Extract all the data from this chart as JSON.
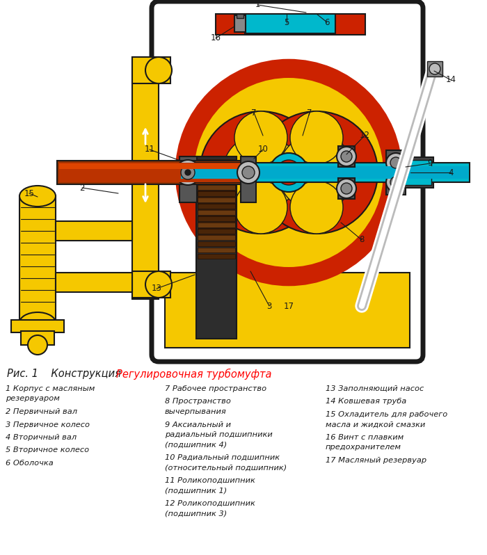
{
  "title_black": "Рис. 1    Конструкция ",
  "title_red": "Регулировочная турбомуфта",
  "title_fontsize": 10.5,
  "col1_labels": [
    "1 Корпус с масляным\nрезервуаром",
    "2 Первичный вал",
    "3 Первичное колесо",
    "4 Вторичный вал",
    "5 Вторичное колесо",
    "6 Оболочка"
  ],
  "col2_labels": [
    "7 Рабочее пространство",
    "8 Пространство\nвычерпывания",
    "9 Аксиальный и\nрадиальный подшипники\n(подшипник 4)",
    "10 Радиальный подшипник\n(относительный подшипник)",
    "11 Роликоподшипник\n(подшипник 1)",
    "12 Роликоподшипник\n(подшипник 3)"
  ],
  "col3_labels": [
    "13 Заполняющий насос",
    "14 Ковшевая труба",
    "15 Охладитель для рабочего\nмасла и жидкой смазки",
    "16 Винт с плавким\nпредохранителем",
    "17 Масляный резервуар"
  ]
}
